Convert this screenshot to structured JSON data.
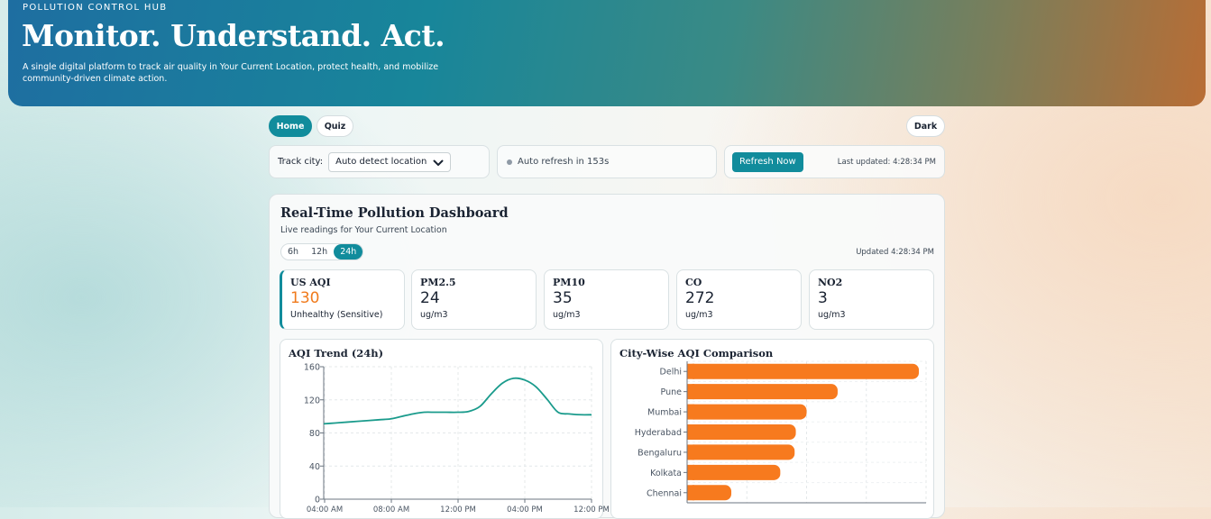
{
  "hero": {
    "eyebrow": "POLLUTION CONTROL HUB",
    "title": "Monitor. Understand. Act.",
    "subtitle": "A single digital platform to track air quality in Your Current Location, protect health, and mobilize community-driven climate action."
  },
  "nav": {
    "home": "Home",
    "quiz": "Quiz",
    "theme": "Dark"
  },
  "controls": {
    "track_label": "Track city:",
    "city_value": "Auto detect location",
    "auto_refresh": "Auto refresh in 153s",
    "refresh_button": "Refresh Now",
    "last_updated": "Last updated: 4:28:34 PM"
  },
  "dashboard": {
    "title": "Real-Time Pollution Dashboard",
    "subtitle": "Live readings for Your Current Location",
    "ranges": [
      "6h",
      "12h",
      "24h"
    ],
    "active_range": "24h",
    "updated": "Updated 4:28:34 PM",
    "cards": [
      {
        "label": "US AQI",
        "value": "130",
        "unit": "Unhealthy (Sensitive)",
        "color": "#f07a1c"
      },
      {
        "label": "PM2.5",
        "value": "24",
        "unit": "ug/m3",
        "color": "#1a2332"
      },
      {
        "label": "PM10",
        "value": "35",
        "unit": "ug/m3",
        "color": "#1a2332"
      },
      {
        "label": "CO",
        "value": "272",
        "unit": "ug/m3",
        "color": "#1a2332"
      },
      {
        "label": "NO2",
        "value": "3",
        "unit": "ug/m3",
        "color": "#1a2332"
      }
    ]
  },
  "colors": {
    "accent": "#118c9c",
    "warning": "#f07a1c",
    "bar": "#f77a1e",
    "line": "#1a9b8c"
  },
  "chart_data": [
    {
      "type": "line",
      "title": "AQI Trend (24h)",
      "ylim": [
        0,
        160
      ],
      "yticks": [
        0,
        40,
        80,
        120,
        160
      ],
      "xticks": [
        "04:00 AM",
        "08:00 AM",
        "12:00 PM",
        "04:00 PM",
        "12:00 PM"
      ],
      "x": [
        0,
        1,
        2,
        3,
        4,
        5,
        6,
        7,
        8,
        9,
        10,
        11,
        12,
        13,
        14,
        15,
        16,
        17,
        18,
        19,
        20,
        21,
        22,
        23,
        24
      ],
      "values": [
        91,
        92,
        93,
        94,
        95,
        96,
        97,
        100,
        103,
        105,
        105,
        105,
        105,
        106,
        112,
        127,
        140,
        146,
        144,
        136,
        121,
        105,
        103,
        102,
        102
      ]
    },
    {
      "type": "bar",
      "orientation": "horizontal",
      "title": "City-Wise AQI Comparison",
      "categories": [
        "Delhi",
        "Pune",
        "Mumbai",
        "Hyderabad",
        "Bengaluru",
        "Kolkata",
        "Chennai"
      ],
      "values": [
        194,
        126,
        100,
        91,
        90,
        78,
        37
      ],
      "xlim": [
        0,
        200
      ]
    }
  ]
}
